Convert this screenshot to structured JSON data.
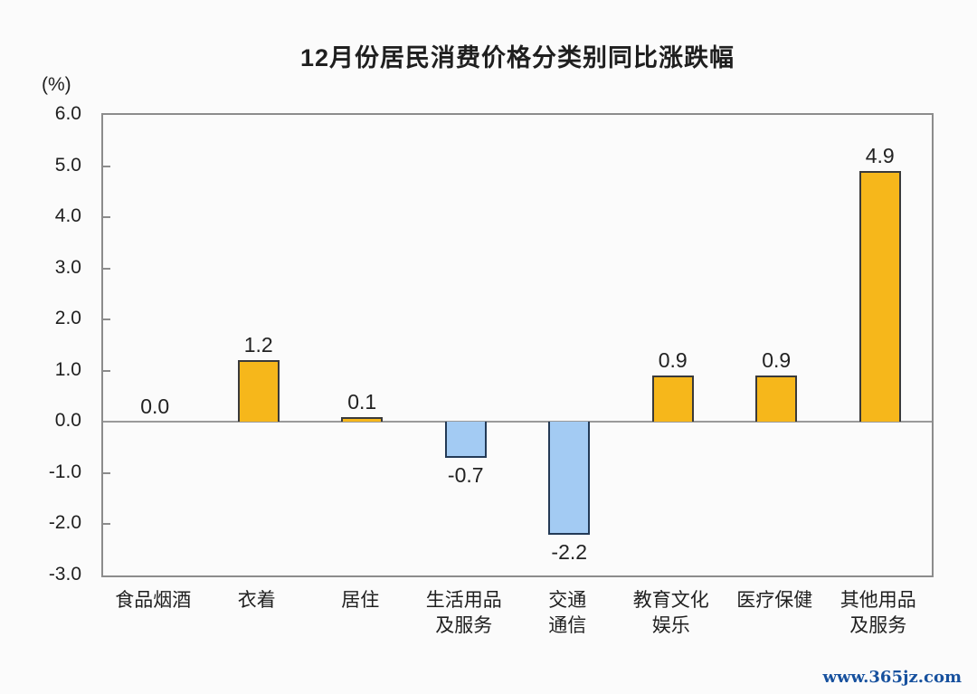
{
  "title": "12月份居民消费价格分类别同比涨跌幅",
  "unit_label": "(%)",
  "watermark": "www.365jz.com",
  "colors": {
    "positive_fill": "#F6B71B",
    "positive_border": "#3a3a3a",
    "negative_fill": "#A3CBF3",
    "negative_border": "#233a56",
    "axis_frame": "#8c8c8c",
    "zero_line": "#9a9a9a",
    "text": "#1f1f1f",
    "watermark_blue": "#17519e",
    "background": "#fbfbfb"
  },
  "chart_data": {
    "type": "bar",
    "title": "12月份居民消费价格分类别同比涨跌幅",
    "xlabel": "",
    "ylabel": "(%)",
    "categories": [
      "食品烟酒",
      "衣着",
      "居住",
      "生活用品及服务",
      "交通通信",
      "教育文化娱乐",
      "医疗保健",
      "其他用品及服务"
    ],
    "category_lines": [
      [
        "食品烟酒"
      ],
      [
        "衣着"
      ],
      [
        "居住"
      ],
      [
        "生活用品",
        "及服务"
      ],
      [
        "交通",
        "通信"
      ],
      [
        "教育文化",
        "娱乐"
      ],
      [
        "医疗保健"
      ],
      [
        "其他用品",
        "及服务"
      ]
    ],
    "values": [
      0.0,
      1.2,
      0.1,
      -0.7,
      -2.2,
      0.9,
      0.9,
      4.9
    ],
    "value_labels": [
      "0.0",
      "1.2",
      "0.1",
      "-0.7",
      "-2.2",
      "0.9",
      "0.9",
      "4.9"
    ],
    "ylim": [
      -3.0,
      6.0
    ],
    "yticks": [
      6.0,
      5.0,
      4.0,
      3.0,
      2.0,
      1.0,
      0.0,
      -1.0,
      -2.0,
      -3.0
    ],
    "ytick_labels": [
      "6.0",
      "5.0",
      "4.0",
      "3.0",
      "2.0",
      "1.0",
      "0.0",
      "-1.0",
      "-2.0",
      "-3.0"
    ],
    "grid": false,
    "legend": "none"
  }
}
